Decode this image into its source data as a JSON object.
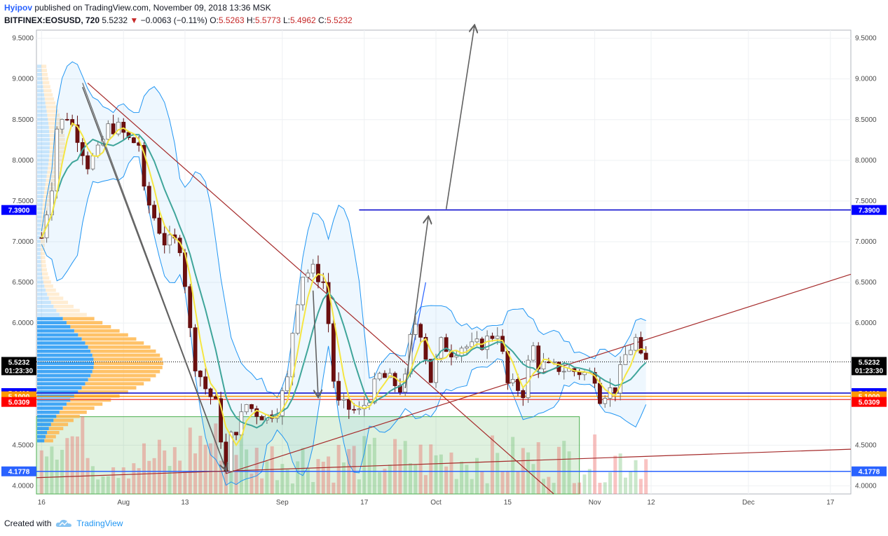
{
  "header": {
    "user": "Hyipov",
    "published_text": "published on TradingView.com, November 09, 2018 13:36 MSK",
    "symbol": "BITFINEX:EOSUSD, 720",
    "last": "5.5232",
    "change_arrow": "▼",
    "change": "−0.0063 (−0.11%)",
    "o_label": "O:",
    "o_value": "5.5263",
    "h_label": "H:",
    "h_value": "5.5773",
    "l_label": "L:",
    "l_value": "5.4962",
    "c_label": "C:",
    "c_value": "5.5232"
  },
  "footer": {
    "created_with": "Created with",
    "brand": "TradingView",
    "logo_icon": "tradingview-cloud-icon"
  },
  "chart_data": {
    "type": "candlestick",
    "symbol": "BITFINEX:EOSUSD",
    "interval": "720",
    "ylim": [
      3.9,
      9.6
    ],
    "y_ticks": [
      "9.5000",
      "9.0000",
      "8.5000",
      "8.0000",
      "7.5000",
      "7.0000",
      "6.5000",
      "6.0000",
      "4.5000",
      "4.0000"
    ],
    "x_ticks": [
      {
        "label": "16",
        "x": 0
      },
      {
        "label": "Aug",
        "x": 16
      },
      {
        "label": "13",
        "x": 28
      },
      {
        "label": "Sep",
        "x": 47
      },
      {
        "label": "17",
        "x": 63
      },
      {
        "label": "Oct",
        "x": 77
      },
      {
        "label": "15",
        "x": 91
      },
      {
        "label": "Nov",
        "x": 108
      },
      {
        "label": "12",
        "x": 119
      },
      {
        "label": "Dec",
        "x": 138
      },
      {
        "label": "17",
        "x": 154
      }
    ],
    "x_range": [
      -1,
      158
    ],
    "last_index": 115,
    "close_path": [
      [
        0,
        7.05
      ],
      [
        2,
        7.7
      ],
      [
        3,
        8.4
      ],
      [
        5,
        8.55
      ],
      [
        7,
        8.3
      ],
      [
        9,
        7.95
      ],
      [
        11,
        8.1
      ],
      [
        13,
        8.4
      ],
      [
        15,
        8.4
      ],
      [
        17,
        8.25
      ],
      [
        19,
        8.2
      ],
      [
        20,
        7.6
      ],
      [
        22,
        7.3
      ],
      [
        24,
        7.0
      ],
      [
        26,
        7.0
      ],
      [
        27,
        6.95
      ],
      [
        28,
        6.5
      ],
      [
        29,
        5.9
      ],
      [
        30,
        5.5
      ],
      [
        32,
        5.2
      ],
      [
        34,
        5.0
      ],
      [
        35,
        4.6
      ],
      [
        36,
        4.15
      ],
      [
        37,
        4.6
      ],
      [
        38,
        4.7
      ],
      [
        40,
        5.0
      ],
      [
        42,
        4.9
      ],
      [
        44,
        4.85
      ],
      [
        46,
        4.95
      ],
      [
        48,
        5.3
      ],
      [
        49,
        5.9
      ],
      [
        50,
        6.3
      ],
      [
        51,
        6.6
      ],
      [
        53,
        6.65
      ],
      [
        55,
        6.5
      ],
      [
        56,
        6.0
      ],
      [
        57,
        5.3
      ],
      [
        58,
        5.0
      ],
      [
        60,
        4.95
      ],
      [
        62,
        4.9
      ],
      [
        64,
        5.1
      ],
      [
        66,
        5.35
      ],
      [
        68,
        5.3
      ],
      [
        70,
        5.2
      ],
      [
        71,
        5.3
      ],
      [
        72,
        5.8
      ],
      [
        73,
        6.0
      ],
      [
        74,
        5.9
      ],
      [
        76,
        5.3
      ],
      [
        78,
        5.75
      ],
      [
        80,
        5.65
      ],
      [
        82,
        5.72
      ],
      [
        84,
        5.7
      ],
      [
        86,
        5.75
      ],
      [
        88,
        5.85
      ],
      [
        89,
        5.9
      ],
      [
        90,
        5.6
      ],
      [
        91,
        5.25
      ],
      [
        93,
        5.2
      ],
      [
        94,
        5.15
      ],
      [
        95,
        5.5
      ],
      [
        96,
        5.7
      ],
      [
        97,
        5.5
      ],
      [
        99,
        5.45
      ],
      [
        101,
        5.45
      ],
      [
        103,
        5.42
      ],
      [
        105,
        5.4
      ],
      [
        106,
        5.38
      ],
      [
        108,
        5.35
      ],
      [
        109,
        5.1
      ],
      [
        110,
        5.15
      ],
      [
        112,
        5.2
      ],
      [
        113,
        5.4
      ],
      [
        114,
        5.6
      ],
      [
        116,
        5.8
      ],
      [
        117,
        5.55
      ],
      [
        118,
        5.52
      ]
    ],
    "series": [
      {
        "name": "",
        "type": "moving-average-yellow",
        "color": "#f5e642"
      },
      {
        "name": "",
        "type": "moving-average-teal",
        "color": "#3fa59a"
      },
      {
        "name": "",
        "type": "bollinger-band",
        "color": "#2196f3"
      }
    ],
    "price_labels": [
      {
        "value": "7.3900",
        "price": 7.39,
        "color": "#0000ff"
      },
      {
        "value": "5.5232",
        "price": 5.5232,
        "color": "#000000"
      },
      {
        "value": "01:23:30",
        "price": 5.42,
        "color": "#000000"
      },
      {
        "value": "5.1400",
        "price": 5.14,
        "color": "#0000ff"
      },
      {
        "value": "5.1000",
        "price": 5.1,
        "color": "#ff9800"
      },
      {
        "value": "5.0309",
        "price": 5.0309,
        "color": "#ff0000"
      },
      {
        "value": "4.1778",
        "price": 4.1778,
        "color": "#2962ff"
      }
    ],
    "horizontal_lines": [
      {
        "price": 7.39,
        "from_x": 62,
        "color": "#0000cc"
      },
      {
        "price": 5.14,
        "from_x": -1,
        "color": "#0000cc"
      },
      {
        "price": 5.1,
        "from_x": -1,
        "color": "#ff9800"
      },
      {
        "price": 5.06,
        "from_x": -1,
        "color": "#ef5350"
      },
      {
        "price": 4.1778,
        "from_x": -1,
        "color": "#2962ff"
      }
    ],
    "trendlines": [
      {
        "from": [
          9,
          8.95
        ],
        "to": [
          100,
          3.9
        ],
        "color": "#a52a2a"
      },
      {
        "from": [
          36,
          4.15
        ],
        "to": [
          158,
          6.6
        ],
        "color": "#a52a2a"
      },
      {
        "from": [
          -1,
          4.1
        ],
        "to": [
          158,
          4.45
        ],
        "color": "#a52a2a"
      },
      {
        "from": [
          8,
          8.95
        ],
        "to": [
          36,
          4.2
        ],
        "color": "#666666"
      },
      {
        "from": [
          71,
          5.2
        ],
        "to": [
          75,
          6.5
        ],
        "color": "#2962ff"
      }
    ],
    "arrows": [
      {
        "from": [
          71,
          5.2
        ],
        "to": [
          75.5,
          7.3
        ],
        "color": "#616161"
      },
      {
        "from": [
          79,
          7.4
        ],
        "to": [
          84.5,
          9.65
        ],
        "color": "#616161"
      },
      {
        "from": [
          8,
          8.9
        ],
        "to": [
          36,
          4.2
        ],
        "color": "#616161"
      },
      {
        "from": [
          53,
          6.4
        ],
        "to": [
          54,
          5.1
        ],
        "color": "#616161"
      }
    ],
    "green_box": {
      "x0": -1,
      "x1": 105,
      "p0": 4.85,
      "p1": 3.9
    },
    "volume_profile_note": "left-side volume profile histogram"
  }
}
